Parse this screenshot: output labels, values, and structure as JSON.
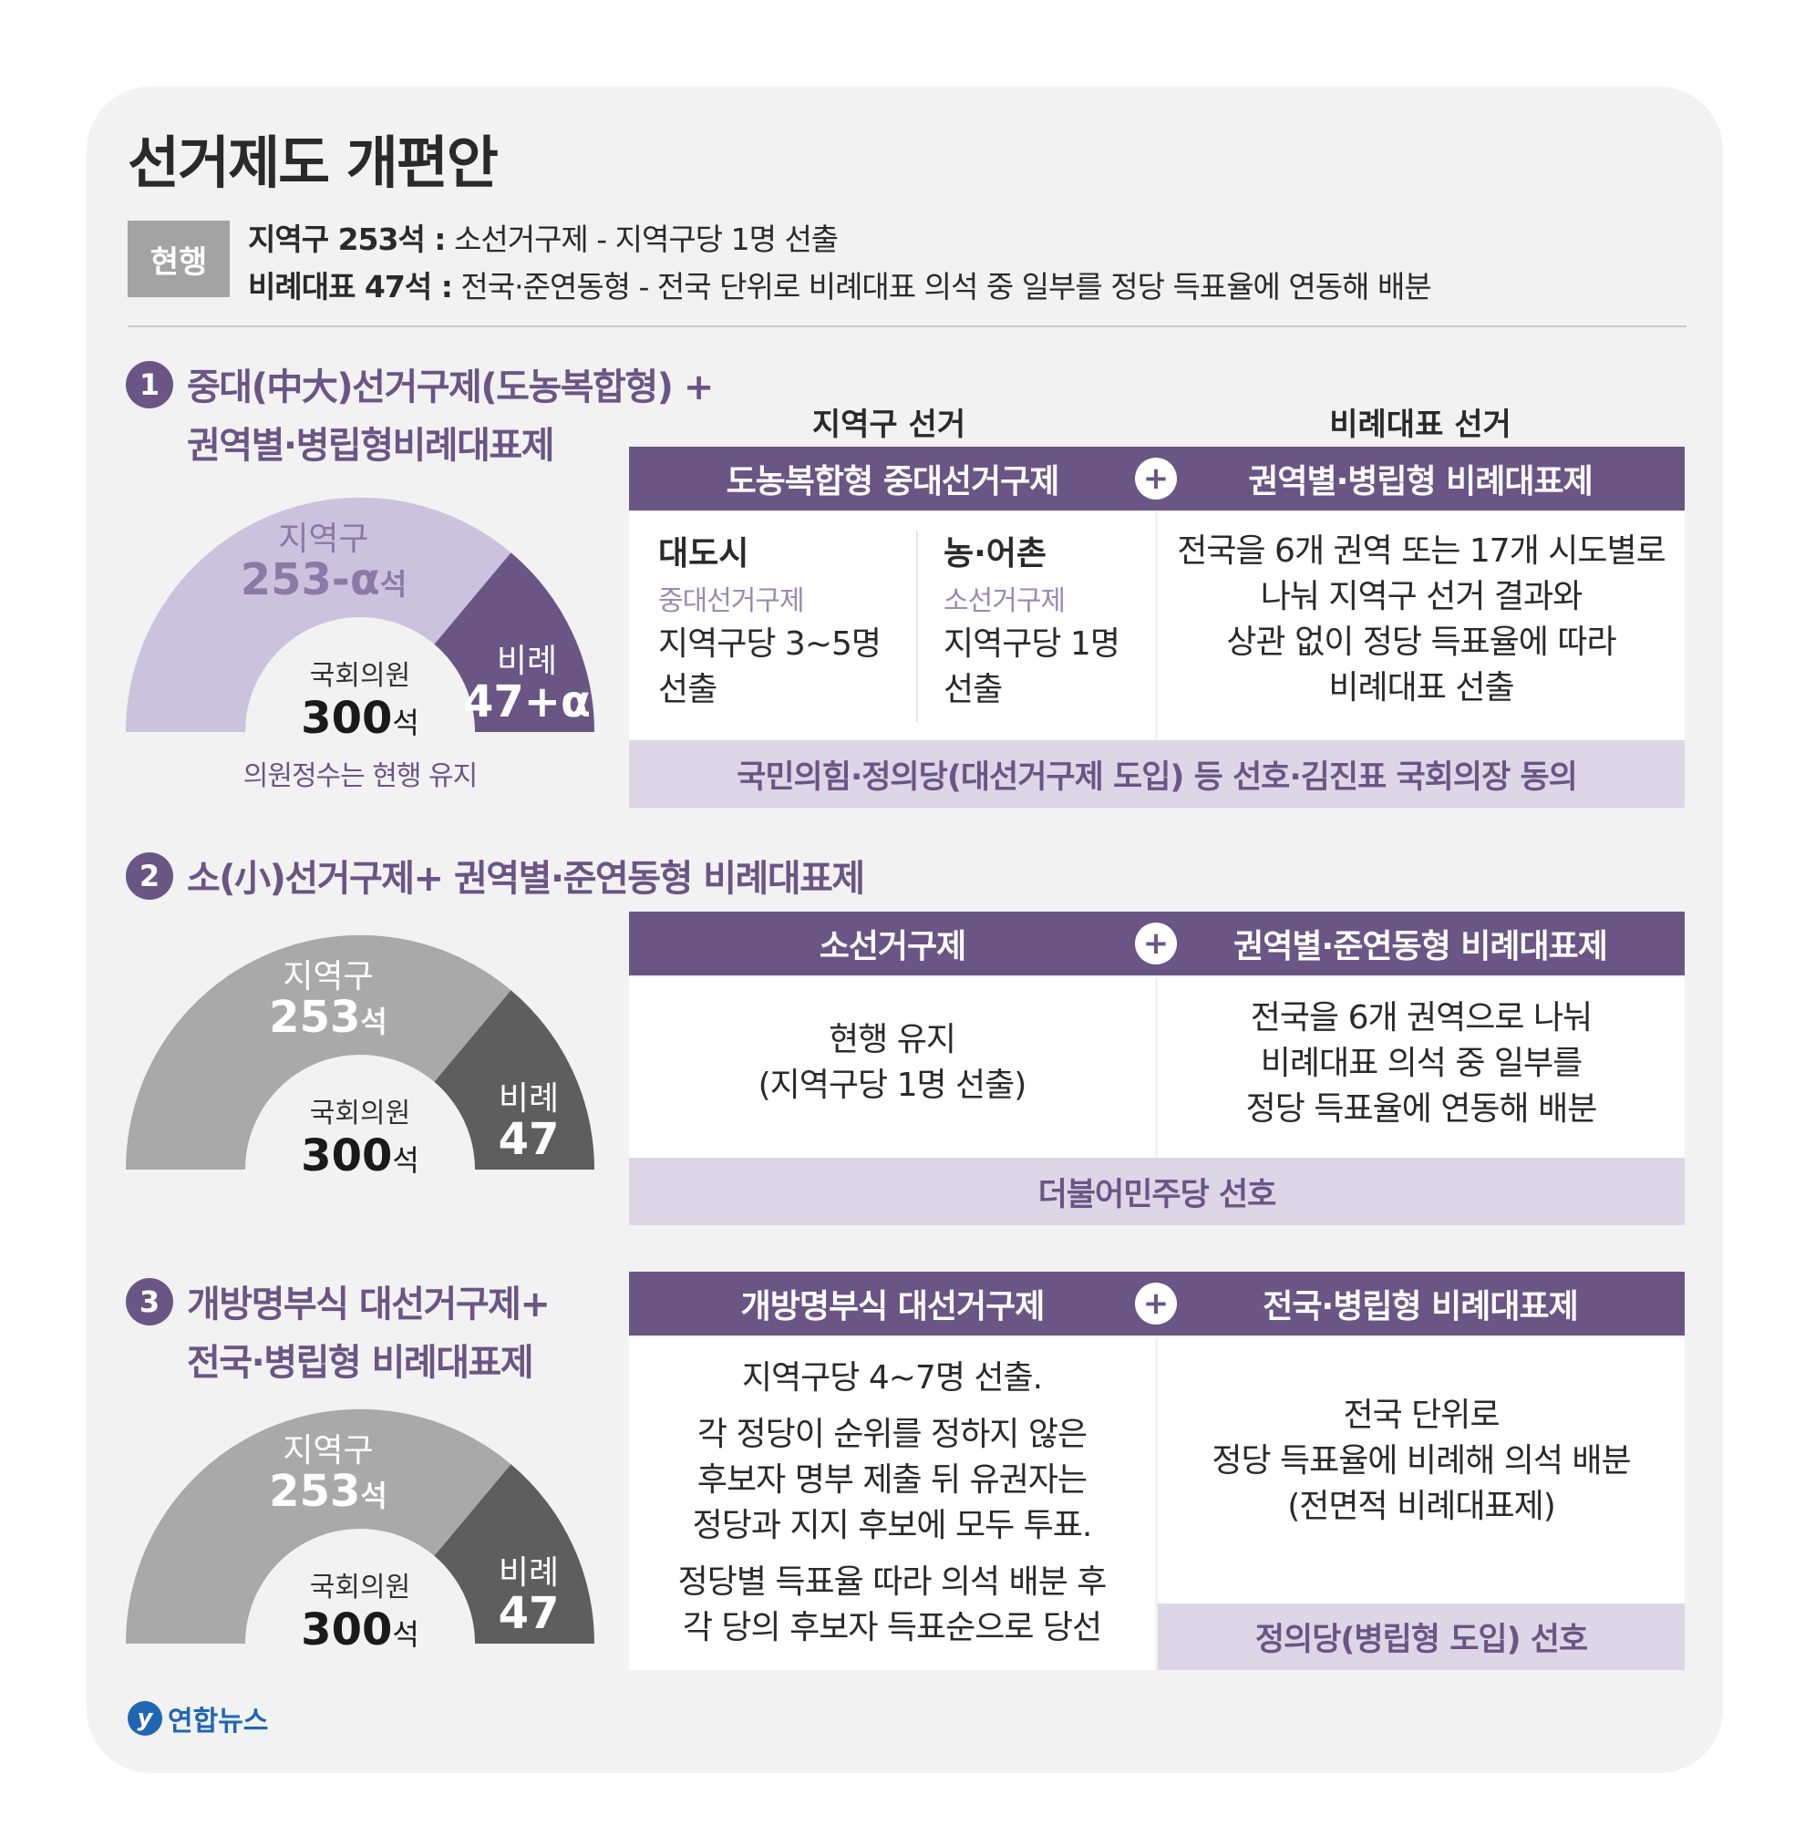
{
  "title": "선거제도 개편안",
  "current": {
    "badge": "현행",
    "line1_bold": "지역구 253석 :",
    "line1_text": " 소선거구제 - 지역구당 1명 선출",
    "line2_bold": "비례대표 47석 :",
    "line2_text": " 전국·준연동형 - 전국 단위로 비례대표 의석 중 일부를 정당 득표율에 연동해 배분"
  },
  "column_headers": {
    "district": "지역구 선거",
    "proportional": "비례대표 선거"
  },
  "plus_sign": "+",
  "options": [
    {
      "num": "1",
      "title_line1": "중대(中大)선거구제(도농복합형) +",
      "title_line2": "권역별·병립형비례대표제",
      "chart": {
        "district_label": "지역구",
        "district_value": "253-α",
        "district_unit": "석",
        "pr_label": "비례",
        "pr_value": "47+α",
        "center_label": "국회의원",
        "center_value": "300",
        "center_unit": "석",
        "note": "의원정수는 현행 유지",
        "colors": {
          "district": "#cbc3dd",
          "pr": "#6a5585",
          "district_text": "#8b7aa5",
          "pr_text": "#ffffff"
        }
      },
      "left_bar": "도농복합형 중대선거구제",
      "right_bar": "권역별·병립형 비례대표제",
      "city": {
        "title": "대도시",
        "sub": "중대선거구제",
        "line1": "지역구당 3~5명",
        "line2": "선출"
      },
      "rural": {
        "title": "농·어촌",
        "sub": "소선거구제",
        "line1": "지역구당 1명",
        "line2": "선출"
      },
      "right_lines": [
        "전국을 6개 권역 또는 17개 시도별로",
        "나눠 지역구 선거 결과와",
        "상관 없이 정당 득표율에 따라",
        "비례대표 선출"
      ],
      "support": "국민의힘·정의당(대선거구제 도입) 등 선호·김진표 국회의장 동의"
    },
    {
      "num": "2",
      "title_line1": "소(小)선거구제+ 권역별·준연동형 비례대표제",
      "chart": {
        "district_label": "지역구",
        "district_value": "253",
        "district_unit": "석",
        "pr_label": "비례",
        "pr_value": "47",
        "center_label": "국회의원",
        "center_value": "300",
        "center_unit": "석",
        "colors": {
          "district": "#a9a9a9",
          "pr": "#5e5e5e",
          "district_text": "#ffffff",
          "pr_text": "#ffffff"
        }
      },
      "left_bar": "소선거구제",
      "right_bar": "권역별·준연동형 비례대표제",
      "left_lines": [
        "현행 유지",
        "(지역구당 1명 선출)"
      ],
      "right_lines": [
        "전국을 6개 권역으로 나눠",
        "비례대표 의석 중 일부를",
        "정당 득표율에 연동해 배분"
      ],
      "support": "더불어민주당 선호"
    },
    {
      "num": "3",
      "title_line1": "개방명부식 대선거구제+",
      "title_line2": "전국·병립형 비례대표제",
      "chart": {
        "district_label": "지역구",
        "district_value": "253",
        "district_unit": "석",
        "pr_label": "비례",
        "pr_value": "47",
        "center_label": "국회의원",
        "center_value": "300",
        "center_unit": "석",
        "colors": {
          "district": "#a9a9a9",
          "pr": "#5e5e5e",
          "district_text": "#ffffff",
          "pr_text": "#ffffff"
        }
      },
      "left_bar": "개방명부식 대선거구제",
      "right_bar": "전국·병립형 비례대표제",
      "left_p1": "지역구당 4~7명 선출.",
      "left_p2": [
        "각 정당이 순위를 정하지 않은",
        "후보자 명부 제출 뒤 유권자는",
        "정당과 지지 후보에 모두 투표."
      ],
      "left_p3": [
        "정당별 득표율 따라 의석 배분 후",
        "각 당의 후보자 득표순으로 당선"
      ],
      "right_lines": [
        "전국 단위로",
        "정당 득표율에 비례해 의석 배분",
        "(전면적 비례대표제)"
      ],
      "support": "정의당(병립형 도입) 선호"
    }
  ],
  "logo": {
    "icon": "y",
    "text": "연합뉴스"
  }
}
